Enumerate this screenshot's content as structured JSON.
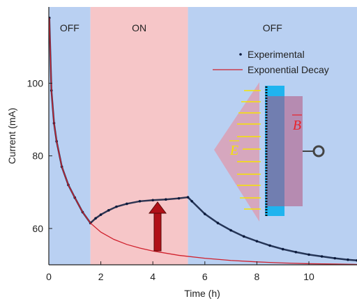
{
  "chart_data": {
    "type": "line",
    "xlabel": "Time (h)",
    "ylabel": "Current (mA)",
    "xlim": [
      0,
      11.85
    ],
    "ylim": [
      50,
      121
    ],
    "xticks": [
      0,
      2,
      4,
      6,
      8,
      10
    ],
    "yticks": [
      60,
      80,
      100
    ],
    "regions": [
      {
        "label": "OFF",
        "start": 0,
        "end": 1.6,
        "color": "#b9d0f2"
      },
      {
        "label": "ON",
        "start": 1.6,
        "end": 5.35,
        "color": "#f6c6c8"
      },
      {
        "label": "OFF",
        "start": 5.35,
        "end": 11.85,
        "color": "#b9d0f2"
      }
    ],
    "series": [
      {
        "name": "Experimental",
        "color": "#0b1a3c",
        "style": "markers",
        "x": [
          0.02,
          0.1,
          0.2,
          0.3,
          0.5,
          0.75,
          1,
          1.3,
          1.6,
          1.8,
          2,
          2.3,
          2.6,
          3,
          3.5,
          4,
          4.5,
          5,
          5.35,
          5.5,
          6,
          6.5,
          7,
          7.5,
          8,
          8.5,
          9,
          9.5,
          10,
          10.5,
          11,
          11.5,
          11.85
        ],
        "values": [
          118,
          98,
          89,
          84,
          77,
          72,
          68.5,
          64.5,
          61.5,
          62.8,
          63.8,
          65,
          66,
          66.8,
          67.5,
          67.8,
          68,
          68.3,
          68.6,
          67.5,
          64,
          61.5,
          59.5,
          57.8,
          56.5,
          55.3,
          54.3,
          53.5,
          52.8,
          52.3,
          51.8,
          51.4,
          51.2
        ]
      },
      {
        "name": "Exponential Decay",
        "color": "#d0202c",
        "style": "line",
        "x": [
          0.02,
          0.1,
          0.2,
          0.3,
          0.5,
          0.75,
          1,
          1.3,
          1.6,
          2,
          2.5,
          3,
          3.5,
          4,
          5,
          6,
          7,
          8,
          9,
          10,
          11,
          11.85
        ],
        "values": [
          118,
          98,
          89,
          84,
          77,
          72,
          68.5,
          64.5,
          61.5,
          59,
          57,
          55.6,
          54.6,
          53.8,
          52.6,
          51.8,
          51.2,
          50.8,
          50.5,
          50.3,
          50.2,
          50.1
        ]
      }
    ],
    "annotations": {
      "e_field": "E",
      "b_field": "B"
    }
  }
}
